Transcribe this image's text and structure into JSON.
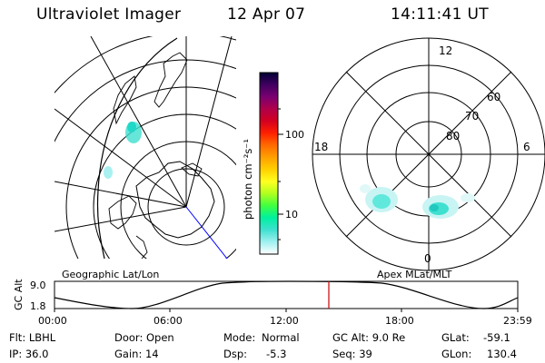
{
  "header": {
    "title": "Ultraviolet Imager",
    "date": "12 Apr 07",
    "time": "14:11:41 UT"
  },
  "left_map": {
    "label": "Geographic Lat/Lon"
  },
  "right_map": {
    "label": "Apex MLat/MLT",
    "mlt_labels": {
      "top": "12",
      "left": "18",
      "right": "6",
      "bottom": "0"
    },
    "lat_labels": [
      "60",
      "70",
      "80"
    ]
  },
  "colorbar": {
    "unit_label": "photon cm⁻²s⁻¹",
    "ticks": [
      "100",
      "10"
    ],
    "colors": [
      "#000033",
      "#400060",
      "#7a0070",
      "#b0004a",
      "#d40020",
      "#ff2000",
      "#ff6a00",
      "#ffa000",
      "#ffd000",
      "#ffff20",
      "#b0ff20",
      "#40ff40",
      "#00f0a0",
      "#40e0d0",
      "#a0f0f0",
      "#ffffff"
    ]
  },
  "timeline": {
    "y_axis_label": "GC Alt",
    "y_ticks": [
      "9.0",
      "1.8"
    ],
    "x_ticks": [
      "00:00",
      "06:00",
      "12:00",
      "18:00",
      "23:59"
    ],
    "marker_color": "#cc0000"
  },
  "info": {
    "col1": [
      "Flt: LBHL",
      "IP: 36.0"
    ],
    "col2": [
      "Door: Open",
      "Gain: 14"
    ],
    "col3_label": [
      "Mode:",
      "Dsp:"
    ],
    "col3_value": [
      "Normal",
      "-5.3"
    ],
    "col4": [
      "GC Alt: 9.0 Re",
      "Seq: 39"
    ],
    "col5_label": [
      "GLat:",
      "GLon:"
    ],
    "col5_value": [
      "-59.1",
      "130.4"
    ]
  }
}
